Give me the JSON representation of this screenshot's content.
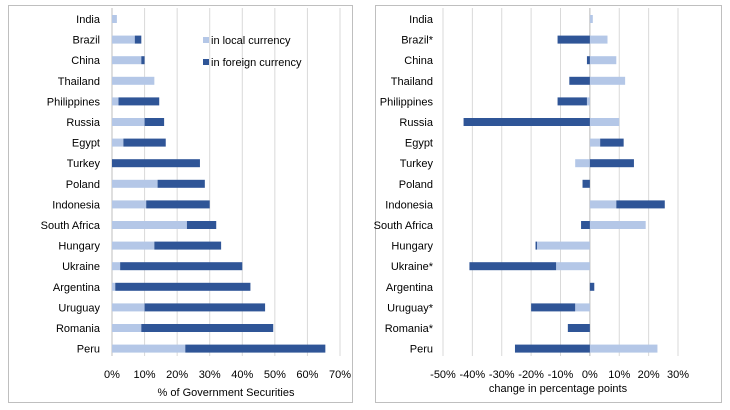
{
  "colors": {
    "local": "#b4c7e7",
    "foreign": "#2f5597",
    "grid": "#d9d9d9"
  },
  "chart_data": [
    {
      "type": "bar",
      "orientation": "horizontal",
      "stacked": true,
      "categories": [
        "India",
        "Brazil",
        "China",
        "Thailand",
        "Philippines",
        "Russia",
        "Egypt",
        "Turkey",
        "Poland",
        "Indonesia",
        "South Africa",
        "Hungary",
        "Ukraine",
        "Argentina",
        "Uruguay",
        "Romania",
        "Peru"
      ],
      "series": [
        {
          "name": "in local currency",
          "values": [
            1.5,
            7,
            9,
            13,
            2,
            10,
            3.5,
            0,
            14,
            10.5,
            23,
            13,
            2.5,
            1,
            10,
            9,
            22.5
          ]
        },
        {
          "name": "in foreign currency",
          "values": [
            0,
            2,
            1,
            0,
            12.5,
            6,
            13,
            27,
            14.5,
            19.5,
            9,
            20.5,
            37.5,
            41.5,
            37,
            40.5,
            43
          ]
        }
      ],
      "xlabel": "% of Government Securities",
      "ylabel": "",
      "xlim": [
        0,
        70
      ],
      "xticks": [
        "0%",
        "10%",
        "20%",
        "30%",
        "40%",
        "50%",
        "60%",
        "70%"
      ],
      "grid": true,
      "legend": "top-right"
    },
    {
      "type": "bar",
      "orientation": "horizontal",
      "stacked": "diverging",
      "categories": [
        "India",
        "Brazil*",
        "China",
        "Thailand",
        "Philippines",
        "Russia",
        "Egypt",
        "Turkey",
        "Poland",
        "Indonesia",
        "South Africa",
        "Hungary",
        "Ukraine*",
        "Argentina",
        "Uruguay*",
        "Romania*",
        "Peru"
      ],
      "series": [
        {
          "name": "in local currency",
          "values": [
            1,
            6,
            9,
            12,
            -1,
            10,
            3.5,
            -5,
            0,
            9,
            19,
            -18,
            -11.5,
            0,
            -5,
            0,
            23
          ]
        },
        {
          "name": "in foreign currency",
          "values": [
            0,
            -11,
            -1,
            -7,
            -10,
            -43,
            8,
            15,
            -2.5,
            16.5,
            -3,
            -0.5,
            -29.5,
            1.5,
            -15,
            -7.5,
            -25.5
          ]
        }
      ],
      "xlabel": "change in percentage points",
      "ylabel": "",
      "xlim": [
        -50,
        30
      ],
      "xticks": [
        "-50%",
        "-40%",
        "-30%",
        "-20%",
        "-10%",
        "0%",
        "10%",
        "20%",
        "30%"
      ],
      "grid": true
    }
  ]
}
